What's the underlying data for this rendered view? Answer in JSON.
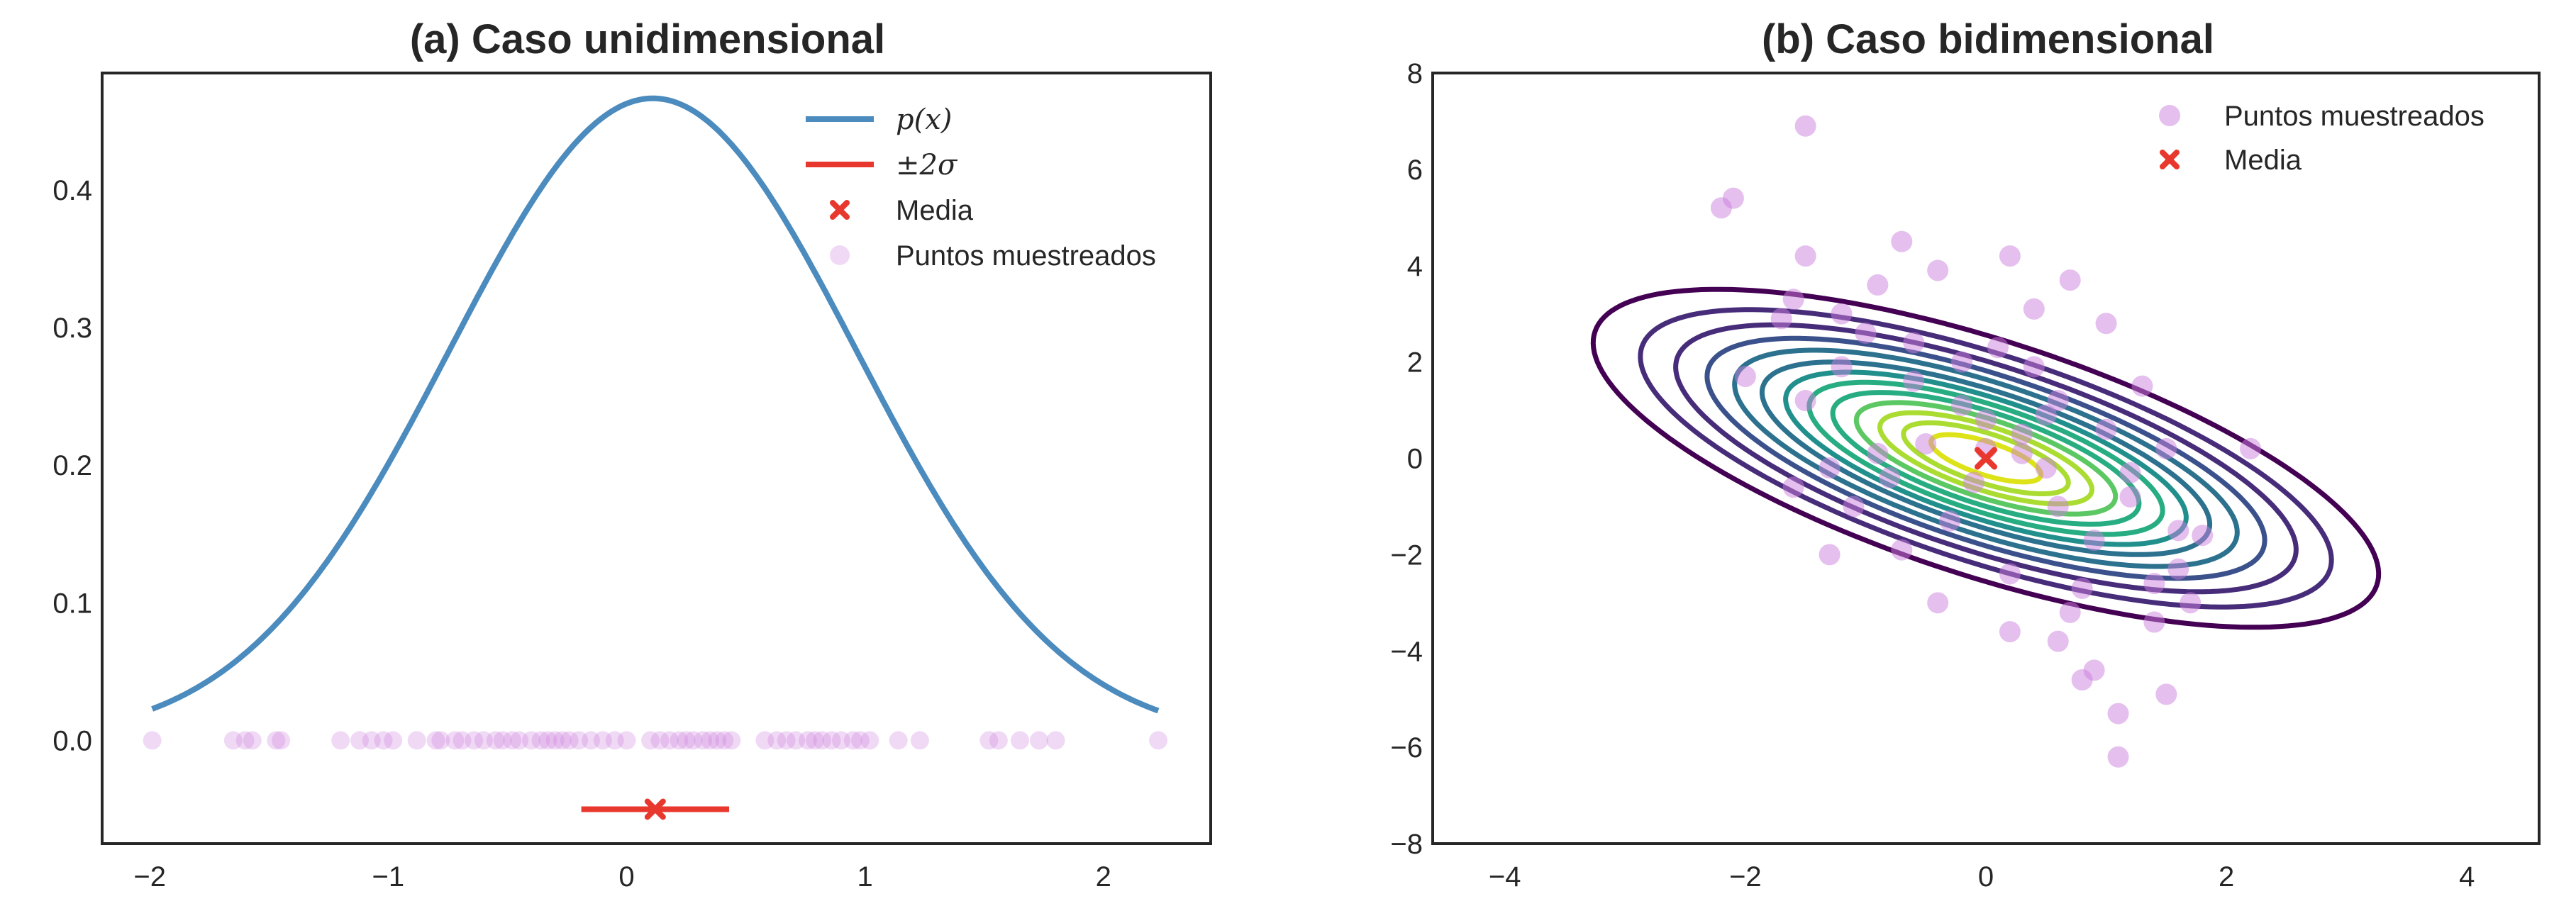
{
  "colors": {
    "curve": "#4b8bbe",
    "red": "#e8382e",
    "points": "#cc80dd",
    "axis": "#262626",
    "contours": [
      "#440154",
      "#472c7a",
      "#3b518b",
      "#2c718e",
      "#21908d",
      "#27ad81",
      "#5cc863",
      "#aadc32",
      "#dde318"
    ]
  },
  "chart_data": [
    {
      "type": "line",
      "title": "(a) Caso unidimensional",
      "xlabel": "",
      "ylabel": "",
      "xlim": [
        -2.2,
        2.45
      ],
      "ylim": [
        -0.075,
        0.485
      ],
      "grid": false,
      "legend_position": "upper-right",
      "xticks": [
        -2,
        -1,
        0,
        1,
        2
      ],
      "xtick_labels": [
        "−2",
        "−1",
        "0",
        "1",
        "2"
      ],
      "yticks": [
        0.0,
        0.1,
        0.2,
        0.3,
        0.4
      ],
      "ytick_labels": [
        "0.0",
        "0.1",
        "0.2",
        "0.3",
        "0.4"
      ],
      "series": [
        {
          "name": "p(x)",
          "kind": "normal_pdf",
          "mu": 0.11,
          "sigma": 0.855,
          "x_range": [
            -1.99,
            2.23
          ]
        },
        {
          "name": "±2σ",
          "kind": "hline",
          "x": [
            -0.19,
            0.43
          ],
          "y": -0.05
        },
        {
          "name": "Media",
          "kind": "marker",
          "x": 0.12,
          "y": -0.05
        },
        {
          "name": "Puntos muestreados",
          "kind": "scatter",
          "y": 0.0,
          "x": [
            -1.99,
            -1.65,
            -1.6,
            -1.57,
            -1.47,
            -1.45,
            -1.2,
            -1.12,
            -1.07,
            -1.02,
            -0.98,
            -0.88,
            -0.8,
            -0.78,
            -0.72,
            -0.69,
            -0.64,
            -0.6,
            -0.55,
            -0.52,
            -0.48,
            -0.45,
            -0.4,
            -0.36,
            -0.33,
            -0.3,
            -0.27,
            -0.24,
            -0.2,
            -0.15,
            -0.1,
            -0.05,
            0.0,
            0.1,
            0.14,
            0.18,
            0.22,
            0.25,
            0.28,
            0.32,
            0.35,
            0.38,
            0.41,
            0.44,
            0.58,
            0.63,
            0.67,
            0.71,
            0.76,
            0.79,
            0.82,
            0.86,
            0.9,
            0.95,
            0.98,
            1.02,
            1.14,
            1.23,
            1.52,
            1.56,
            1.65,
            1.73,
            1.8,
            2.23
          ]
        }
      ]
    },
    {
      "type": "scatter",
      "title": "(b) Caso bidimensional",
      "xlabel": "",
      "ylabel": "",
      "xlim": [
        -4.6,
        4.6
      ],
      "ylim": [
        -8,
        8
      ],
      "grid": false,
      "legend_position": "upper-right",
      "xticks": [
        -4,
        -2,
        0,
        2,
        4
      ],
      "xtick_labels": [
        "−4",
        "−2",
        "0",
        "2",
        "4"
      ],
      "yticks": [
        -8,
        -6,
        -4,
        -2,
        0,
        2,
        4,
        6,
        8
      ],
      "ytick_labels": [
        "−8",
        "−6",
        "−4",
        "−2",
        "0",
        "2",
        "4",
        "6",
        "8"
      ],
      "contours": {
        "kind": "gaussian_density",
        "mean": [
          0.0,
          0.0
        ],
        "orientation_deg": -48,
        "semi_axes_outer": [
          4.4,
          1.9
        ],
        "level_scales": [
          1.0,
          0.88,
          0.79,
          0.71,
          0.64,
          0.57,
          0.51,
          0.45,
          0.39,
          0.33,
          0.27,
          0.21,
          0.14
        ]
      },
      "series": [
        {
          "name": "Puntos muestreados",
          "x": [
            -1.5,
            -2.2,
            -2.1,
            -1.5,
            -0.7,
            -0.9,
            -1.2,
            -1.6,
            -0.4,
            -2.0,
            -1.5,
            -1.2,
            -0.6,
            -0.2,
            0.2,
            0.7,
            0.4,
            1.0,
            1.3,
            1.5,
            1.6,
            1.6,
            0.9,
            0.8,
            1.1,
            1.5,
            2.2,
            1.8,
            0.2,
            0.6,
            -0.8,
            -1.6,
            -1.1,
            -0.3,
            0.0,
            -0.2,
            0.3,
            0.5,
            -0.5,
            0.6,
            1.2,
            1.4,
            0.7,
            -1.3,
            -0.6,
            0.1,
            0.4,
            1.0,
            -1.0,
            -1.7,
            -0.7,
            0.2,
            -0.4,
            0.8,
            0.9,
            1.2,
            0.5,
            -0.1,
            0.0,
            0.3,
            1.7,
            1.4,
            -0.9,
            -1.3,
            0.6,
            1.1
          ],
          "y": [
            6.9,
            5.2,
            5.4,
            4.2,
            4.5,
            3.6,
            3.0,
            3.3,
            3.9,
            1.7,
            1.2,
            1.9,
            2.4,
            2.0,
            4.2,
            3.7,
            3.1,
            2.8,
            1.5,
            0.2,
            -1.5,
            -2.3,
            -4.4,
            -4.6,
            -5.3,
            -4.9,
            0.2,
            -1.6,
            -3.6,
            -3.8,
            -0.4,
            -0.6,
            -1.0,
            -1.3,
            0.8,
            1.1,
            0.5,
            -0.2,
            0.3,
            -1.0,
            -0.8,
            -2.6,
            -3.2,
            -0.2,
            1.6,
            2.3,
            1.9,
            0.6,
            2.6,
            2.9,
            -1.9,
            -2.4,
            -3.0,
            -2.7,
            -1.7,
            -0.3,
            0.9,
            -0.5,
            0.2,
            0.1,
            -3.0,
            -3.4,
            0.1,
            -2.0,
            1.2,
            -6.2
          ]
        },
        {
          "name": "Media",
          "kind": "marker",
          "x": [
            0.0
          ],
          "y": [
            0.0
          ]
        }
      ]
    }
  ]
}
